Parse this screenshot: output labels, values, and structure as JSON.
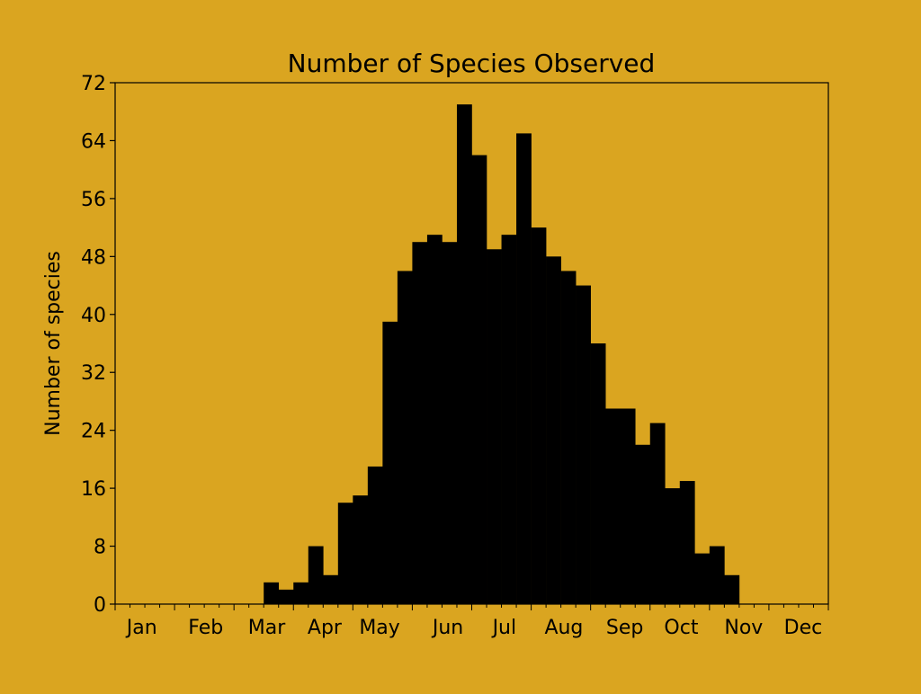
{
  "chart_data": {
    "type": "bar",
    "title": "Number of Species Observed",
    "xlabel": "",
    "ylabel": "Number of species",
    "bin_count": 48,
    "xlim": [
      0,
      48
    ],
    "ylim": [
      0,
      72
    ],
    "yticks": [
      0,
      8,
      16,
      24,
      32,
      40,
      48,
      56,
      64,
      72
    ],
    "xtick_labels": [
      {
        "label": "Jan",
        "x": 1.8
      },
      {
        "label": "Feb",
        "x": 6.1
      },
      {
        "label": "Mar",
        "x": 10.2
      },
      {
        "label": "Apr",
        "x": 14.1
      },
      {
        "label": "May",
        "x": 17.8
      },
      {
        "label": "Jun",
        "x": 22.4
      },
      {
        "label": "Jul",
        "x": 26.2
      },
      {
        "label": "Aug",
        "x": 30.2
      },
      {
        "label": "Sep",
        "x": 34.3
      },
      {
        "label": "Oct",
        "x": 38.1
      },
      {
        "label": "Nov",
        "x": 42.3
      },
      {
        "label": "Dec",
        "x": 46.3
      }
    ],
    "values": [
      0,
      0,
      0,
      0,
      0,
      0,
      0,
      0,
      0,
      0,
      3,
      2,
      3,
      8,
      4,
      14,
      15,
      19,
      39,
      46,
      50,
      51,
      50,
      69,
      62,
      49,
      51,
      65,
      52,
      48,
      46,
      44,
      36,
      27,
      27,
      22,
      25,
      16,
      17,
      7,
      8,
      4,
      0,
      0,
      0,
      0,
      0,
      0
    ],
    "grid": false,
    "colors": {
      "background": "#DAA520",
      "bars": "#000000"
    }
  }
}
